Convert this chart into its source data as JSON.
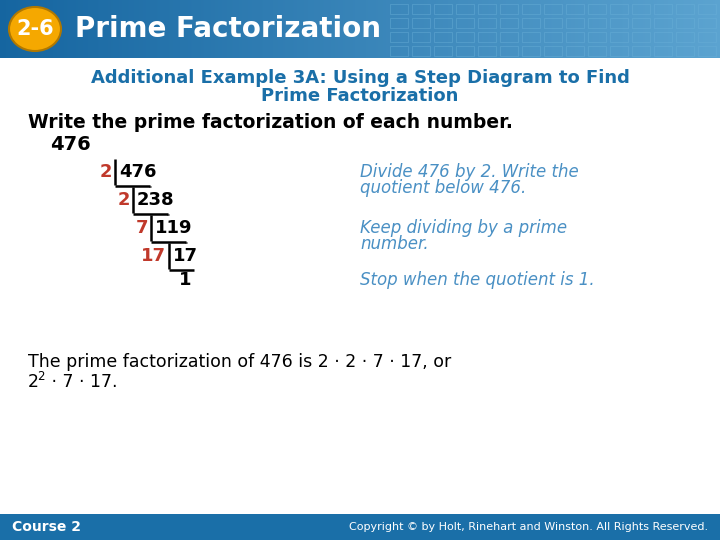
{
  "title_badge": "2-6",
  "title_text": "Prime Factorization",
  "header_bg_color_left": "#1565a0",
  "header_bg_color_right": "#4a90c4",
  "badge_bg_color": "#f5a800",
  "badge_text_color": "#ffffff",
  "title_text_color": "#ffffff",
  "subtitle_line1": "Additional Example 3A: Using a Step Diagram to Find",
  "subtitle_line2": "Prime Factorization",
  "subtitle_color": "#1a6fa8",
  "body_bg_color": "#ffffff",
  "instruction_text": "Write the prime factorization of each number.",
  "instruction_color": "#000000",
  "number_label": "476",
  "number_label_color": "#000000",
  "step_divisors": [
    "2",
    "2",
    "7",
    "17"
  ],
  "step_dividends": [
    "476",
    "238",
    "119",
    "17"
  ],
  "step_result": "1",
  "divisor_color": "#c0392b",
  "dividend_color": "#000000",
  "result_color": "#000000",
  "annotation1_line1": "Divide 476 by 2. Write the",
  "annotation1_line2": "quotient below 476.",
  "annotation2_line1": "Keep dividing by a prime",
  "annotation2_line2": "number.",
  "annotation3": "Stop when the quotient is 1.",
  "annotation_color": "#4a90c4",
  "conclusion_line1": "The prime factorization of 476 is 2 · 2 · 7 · 17, or",
  "conclusion_line2": "2",
  "conclusion_line2_sup": "2",
  "conclusion_line2_rest": " · 7 · 17.",
  "conclusion_color": "#000000",
  "footer_bg_color": "#1a6fa8",
  "footer_left": "Course 2",
  "footer_right": "Copyright © by Holt, Rinehart and Winston. All Rights Reserved.",
  "footer_text_color": "#ffffff"
}
